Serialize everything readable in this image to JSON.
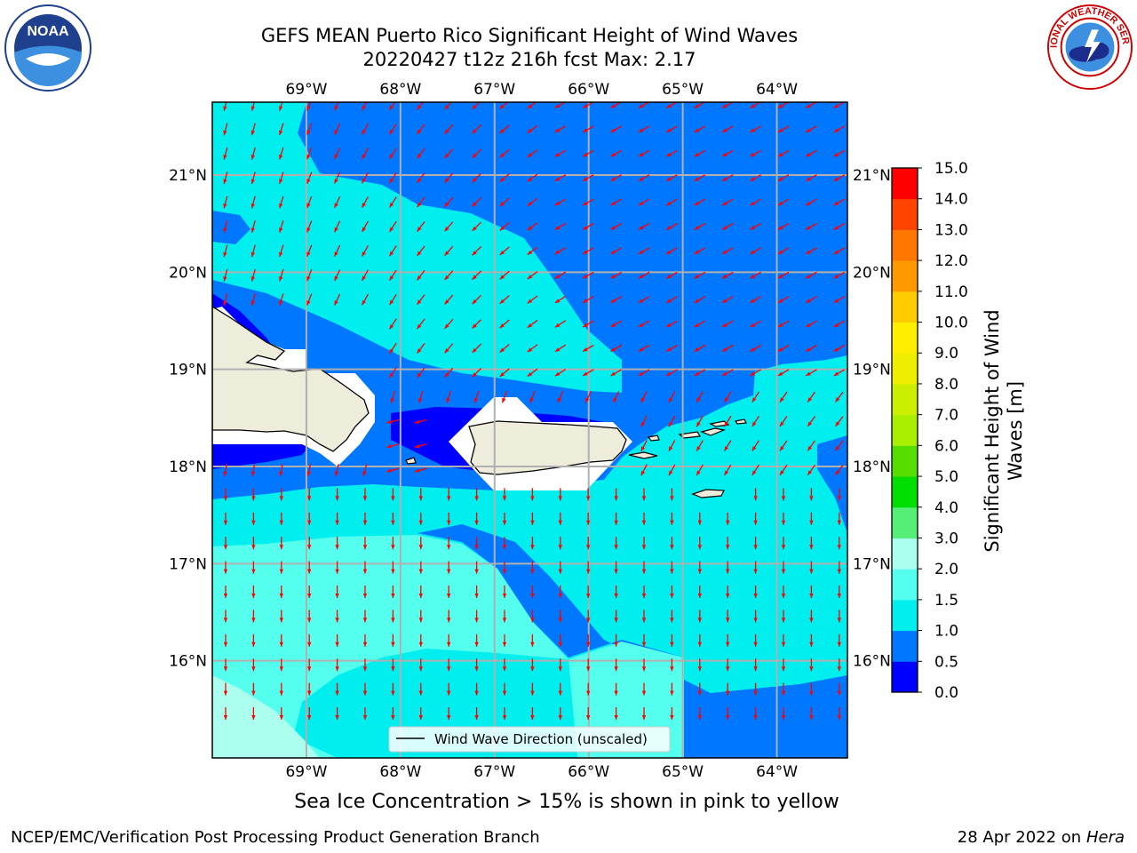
{
  "header": {
    "title": "GEFS MEAN Puerto Rico Significant Height of Wind Waves",
    "subtitle": "20220427 t12z 216h fcst   Max: 2.17"
  },
  "map": {
    "lon_range": [
      -70.0,
      -63.25
    ],
    "lat_range": [
      15.0,
      21.75
    ],
    "lon_ticks": [
      {
        "value": -69,
        "label": "69°W"
      },
      {
        "value": -68,
        "label": "68°W"
      },
      {
        "value": -67,
        "label": "67°W"
      },
      {
        "value": -66,
        "label": "66°W"
      },
      {
        "value": -65,
        "label": "65°W"
      },
      {
        "value": -64,
        "label": "64°W"
      }
    ],
    "lat_ticks": [
      {
        "value": 21,
        "label": "21°N"
      },
      {
        "value": 20,
        "label": "20°N"
      },
      {
        "value": 19,
        "label": "19°N"
      },
      {
        "value": 18,
        "label": "18°N"
      },
      {
        "value": 17,
        "label": "17°N"
      },
      {
        "value": 16,
        "label": "16°N"
      }
    ],
    "legend_label": "Wind Wave Direction (unscaled)",
    "land_color": "#eeecdb",
    "arrow_color": "#ff0000"
  },
  "colorbar": {
    "label_line1": "Significant Height of Wind",
    "label_line2": "Waves [m]",
    "bounds": [
      "0.0",
      "0.5",
      "1.0",
      "1.5",
      "2.0",
      "3.0",
      "4.0",
      "5.0",
      "6.0",
      "7.0",
      "8.0",
      "9.0",
      "10.0",
      "11.0",
      "12.0",
      "13.0",
      "14.0",
      "15.0"
    ],
    "colors": [
      "#0000ff",
      "#0077ff",
      "#00eeee",
      "#55ffee",
      "#aaffee",
      "#55ee77",
      "#00dd00",
      "#55dd00",
      "#aaee00",
      "#ccee00",
      "#eeee00",
      "#ffee00",
      "#ffcc00",
      "#ff9900",
      "#ff7700",
      "#ff4400",
      "#ff0000"
    ]
  },
  "notes": {
    "sea_ice": "Sea Ice Concentration > 15% is shown in pink to yellow"
  },
  "footer": {
    "left": "NCEP/EMC/Verification Post Processing Product Generation Branch",
    "date": "28 Apr 2022 on ",
    "machine": "Hera"
  },
  "logos": {
    "noaa_text": "NOAA",
    "nws_text": "NATIONAL WEATHER SERVICE"
  }
}
